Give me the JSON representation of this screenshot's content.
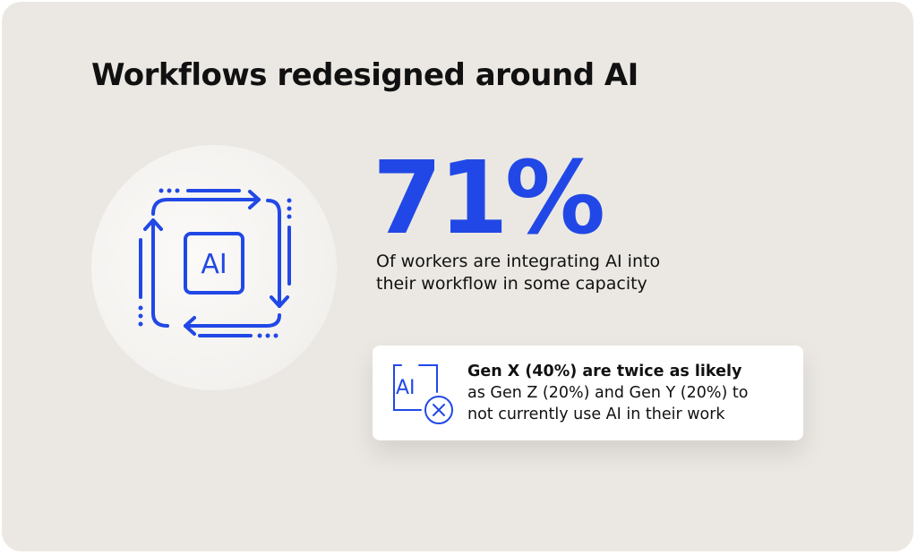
{
  "title": "Workflows redesigned around AI",
  "stat": {
    "value": "71%",
    "description": "Of workers are integrating AI into their workflow in some capacity"
  },
  "callout": {
    "headline": "Gen X (40%) are twice as likely",
    "body_line1": "as Gen Z (20%) and Gen Y (20%) to",
    "body_line2": "not currently use AI in their work"
  },
  "icons": {
    "main": "ai-workflow-cycle-icon",
    "callout": "ai-cross-icon",
    "main_icon_label": "AI",
    "callout_icon_label": "AI"
  },
  "colors": {
    "accent": "#2148e6",
    "background": "#ebe8e3",
    "text": "#111111"
  }
}
